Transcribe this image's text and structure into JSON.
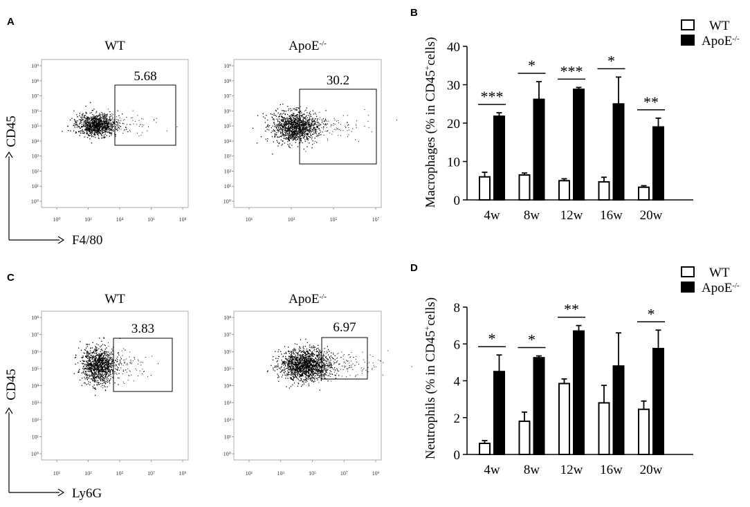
{
  "panel_labels": [
    "A",
    "B",
    "C",
    "D"
  ],
  "flow_plots": [
    {
      "panel": "A",
      "plots": [
        {
          "title": "WT",
          "title_sup": "",
          "gate_value": "5.68",
          "x_ticks": [
            "10⁰",
            "10²",
            "10⁴",
            "10⁶",
            "10⁸"
          ],
          "y_ticks": [
            "10⁰",
            "10¹",
            "10²",
            "10³",
            "10⁴",
            "10⁵",
            "10⁶",
            "10⁷",
            "10⁸",
            "10⁹"
          ]
        },
        {
          "title": "ApoE",
          "title_sup": "-/-",
          "gate_value": "30.2",
          "x_ticks": [
            "10¹",
            "10³",
            "10⁵",
            "10⁷"
          ],
          "y_ticks": [
            "10⁰",
            "10¹",
            "10²",
            "10³",
            "10⁴",
            "10⁵",
            "10⁶",
            "10⁷",
            "10⁸",
            "10⁹"
          ]
        }
      ],
      "y_axis_label": "CD45",
      "x_axis_label": "F4/80"
    },
    {
      "panel": "C",
      "plots": [
        {
          "title": "WT",
          "title_sup": "",
          "gate_value": "3.83",
          "x_ticks": [
            "10¹",
            "10³",
            "10⁵",
            "10⁷",
            "10⁹"
          ],
          "y_ticks": [
            "10⁰",
            "10¹",
            "10²",
            "10³",
            "10⁴",
            "10⁵",
            "10⁶",
            "10⁷",
            "10⁸"
          ]
        },
        {
          "title": "ApoE",
          "title_sup": "-/-",
          "gate_value": "6.97",
          "x_ticks": [
            "10¹",
            "10³",
            "10⁵",
            "10⁷",
            "10⁹"
          ],
          "y_ticks": [
            "10⁰",
            "10¹",
            "10²",
            "10³",
            "10⁴",
            "10⁵",
            "10⁶",
            "10⁷",
            "10⁸"
          ]
        }
      ],
      "y_axis_label": "CD45",
      "x_axis_label": "Ly6G"
    }
  ],
  "chart_data": [
    {
      "panel": "B",
      "type": "bar",
      "categories": [
        "4w",
        "8w",
        "12w",
        "16w",
        "20w"
      ],
      "series": [
        {
          "name": "WT",
          "values": [
            6.0,
            6.5,
            5.0,
            4.7,
            3.3
          ],
          "errors": [
            1.2,
            0.5,
            0.5,
            1.2,
            0.4
          ]
        },
        {
          "name": "ApoE",
          "values": [
            21.8,
            26.2,
            28.8,
            25.0,
            19.0
          ],
          "errors": [
            0.9,
            4.6,
            0.5,
            7.0,
            2.3
          ]
        }
      ],
      "significance": [
        "***",
        "*",
        "***",
        "*",
        "**"
      ],
      "ylabel": "Macrophages (% in CD45",
      "ylabel_sup": "+",
      "ylabel_tail": "cells)",
      "ylim": [
        0,
        40
      ],
      "yticks": [
        0,
        10,
        20,
        30,
        40
      ],
      "legend": [
        {
          "label": "WT",
          "sup": ""
        },
        {
          "label": "ApoE",
          "sup": "-/-"
        }
      ],
      "legend_position": "top-right"
    },
    {
      "panel": "D",
      "type": "bar",
      "categories": [
        "4w",
        "8w",
        "12w",
        "16w",
        "20w"
      ],
      "series": [
        {
          "name": "WT",
          "values": [
            0.6,
            1.8,
            3.85,
            2.8,
            2.45
          ],
          "errors": [
            0.15,
            0.5,
            0.25,
            0.95,
            0.45
          ]
        },
        {
          "name": "ApoE",
          "values": [
            4.5,
            5.25,
            6.7,
            4.8,
            5.75
          ],
          "errors": [
            0.9,
            0.1,
            0.3,
            1.8,
            1.0
          ]
        }
      ],
      "significance": [
        "*",
        "*",
        "**",
        "",
        "*"
      ],
      "ylabel": "Neutrophils (% in CD45",
      "ylabel_sup": "+",
      "ylabel_tail": "cells)",
      "ylim": [
        0,
        8
      ],
      "yticks": [
        0,
        2,
        4,
        6,
        8
      ],
      "legend": [
        {
          "label": "WT",
          "sup": ""
        },
        {
          "label": "ApoE",
          "sup": "-/-"
        }
      ],
      "legend_position": "top-right"
    }
  ]
}
